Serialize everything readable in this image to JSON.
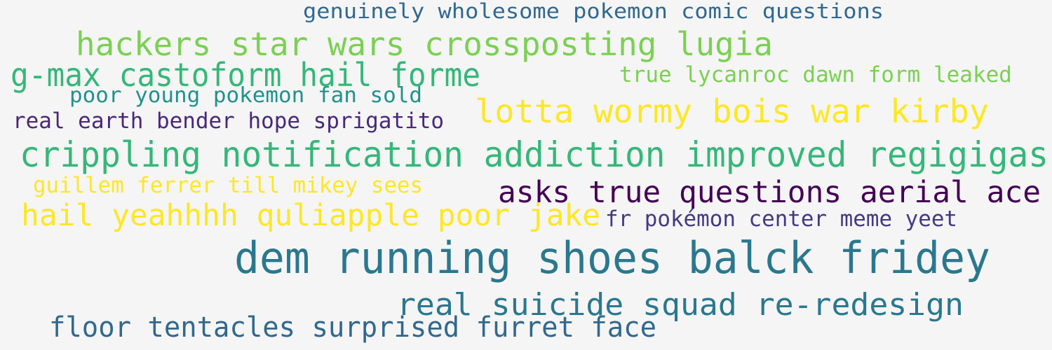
{
  "phrases": [
    {
      "text": "genuinely wholesome pokemon comic questions",
      "color": "#31688e"
    },
    {
      "text": "hackers star wars crossposting lugia",
      "color": "#7ad151"
    },
    {
      "text": "g-max castoform hail forme",
      "color": "#35b779"
    },
    {
      "text": "true lycanroc dawn form leaked",
      "color": "#7ad151"
    },
    {
      "text": "poor young pokemon fan sold",
      "color": "#21918c"
    },
    {
      "text": "lotta wormy bois war kirby",
      "color": "#fde725"
    },
    {
      "text": "real earth bender hope sprigatito",
      "color": "#482878"
    },
    {
      "text": "crippling notification addiction improved regigigas",
      "color": "#35b779"
    },
    {
      "text": "guillem ferrer till mikey sees",
      "color": "#fde725"
    },
    {
      "text": "asks true questions aerial ace",
      "color": "#440154"
    },
    {
      "text": "hail yeahhhh quliapple poor jake",
      "color": "#fde725"
    },
    {
      "text": "fr pokémon center meme yeet",
      "color": "#443983"
    },
    {
      "text": "dem running shoes balck fridey",
      "color": "#2a788e"
    },
    {
      "text": "real suicide squad re-redesign",
      "color": "#2a788e"
    },
    {
      "text": "floor tentacles surprised furret face",
      "color": "#31688e"
    }
  ]
}
